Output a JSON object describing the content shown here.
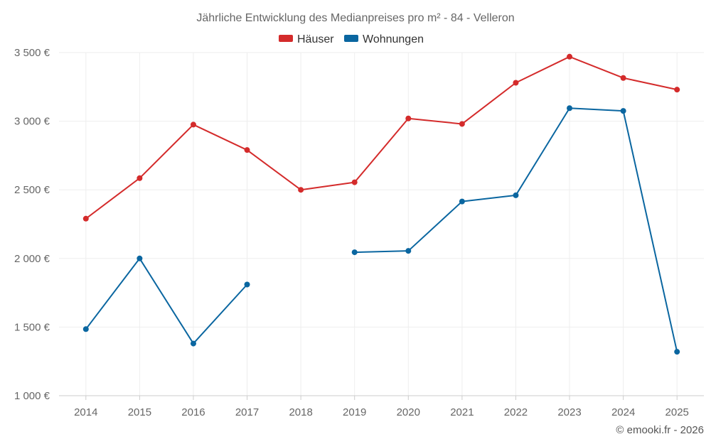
{
  "chart_data": {
    "type": "line",
    "title": "Jährliche Entwicklung des Medianpreises pro m² - 84 - Velleron",
    "categories": [
      "2014",
      "2015",
      "2016",
      "2017",
      "2018",
      "2019",
      "2020",
      "2021",
      "2022",
      "2023",
      "2024",
      "2025"
    ],
    "series": [
      {
        "name": "Häuser",
        "color": "#d42b2b",
        "values": [
          2290,
          2585,
          2975,
          2790,
          2500,
          2555,
          3020,
          2980,
          3280,
          3470,
          3315,
          3230
        ]
      },
      {
        "name": "Wohnungen",
        "color": "#0a66a0",
        "values": [
          1485,
          2000,
          1380,
          1810,
          null,
          2045,
          2055,
          2415,
          2460,
          3095,
          3075,
          1320
        ]
      }
    ],
    "ylim": [
      1000,
      3500
    ],
    "yticks": [
      1000,
      1500,
      2000,
      2500,
      3000,
      3500
    ],
    "ytick_labels": [
      "1 000 €",
      "1 500 €",
      "2 000 €",
      "2 500 €",
      "3 000 €",
      "3 500 €"
    ],
    "xlabel": "",
    "ylabel": "",
    "legend_position": "top-center",
    "grid": true
  },
  "credit": "© emooki.fr - 2026"
}
